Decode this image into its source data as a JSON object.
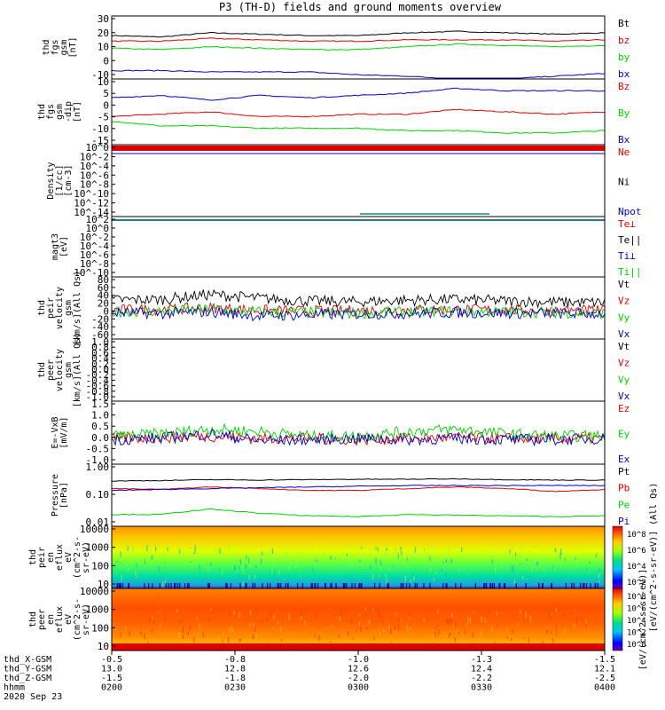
{
  "title": "P3 (TH-D) fields and ground moments overview",
  "colors": {
    "black": "#000000",
    "red": "#e00000",
    "green": "#00d000",
    "blue": "#0000c0"
  },
  "chart_data": [
    {
      "type": "line",
      "ylabel": [
        "thd",
        "fgs",
        "gsm",
        "[nT]"
      ],
      "yticks": [
        "30",
        "20",
        "10",
        "0",
        "-10"
      ],
      "ylim": [
        -15,
        30
      ],
      "series": [
        {
          "name": "Bt",
          "color": "black",
          "values": [
            16,
            15,
            18,
            17,
            16,
            16,
            18,
            19,
            18,
            17,
            18
          ]
        },
        {
          "name": "bz",
          "color": "red",
          "values": [
            12,
            12,
            14,
            13,
            12,
            12,
            13,
            13,
            13,
            12,
            13
          ]
        },
        {
          "name": "by",
          "color": "green",
          "values": [
            7,
            6,
            8,
            7,
            6,
            6,
            8,
            10,
            9,
            8,
            9
          ]
        },
        {
          "name": "bx",
          "color": "blue",
          "values": [
            -9,
            -9,
            -10,
            -10,
            -10,
            -12,
            -13,
            -15,
            -15,
            -13,
            -11
          ]
        }
      ]
    },
    {
      "type": "line",
      "ylabel": [
        "thd",
        "fgs",
        "gsm",
        "-dip",
        "[nT]"
      ],
      "yticks": [
        "10",
        "5",
        "0",
        "-5",
        "-10",
        "-15"
      ],
      "ylim": [
        -18,
        10
      ],
      "series": [
        {
          "name": "Bz",
          "color": "red",
          "values": [
            -6,
            -5,
            -4,
            -6,
            -6,
            -5,
            -5,
            -3,
            -4,
            -5,
            -4
          ]
        },
        {
          "name": "By",
          "color": "green",
          "values": [
            -8,
            -10,
            -10,
            -11,
            -11,
            -11,
            -12,
            -12,
            -13,
            -13,
            -12
          ]
        },
        {
          "name": "Bx",
          "color": "blue",
          "values": [
            2,
            3,
            1,
            3,
            2,
            3,
            4,
            6,
            5,
            5,
            5
          ]
        }
      ]
    },
    {
      "type": "line",
      "ylabel": [
        "Density",
        "[1/cc]",
        "[cm-3]"
      ],
      "yticks": [
        "10^0",
        "10^-2",
        "10^-4",
        "10^-6",
        "10^-8",
        "10^-10",
        "10^-12",
        "10^-14"
      ],
      "series": [
        {
          "name": "Ne",
          "color": "red"
        },
        {
          "name": "Ni",
          "color": "black"
        },
        {
          "name": "Npot",
          "color": "blue"
        }
      ]
    },
    {
      "type": "line",
      "ylabel": [
        "magt3",
        "[eV]"
      ],
      "yticks": [
        "10^2",
        "10^0",
        "10^-2",
        "10^-4",
        "10^-6",
        "10^-8",
        "10^-10"
      ],
      "series": [
        {
          "name": "Te⊥",
          "color": "red"
        },
        {
          "name": "Te||",
          "color": "black"
        },
        {
          "name": "Ti⊥",
          "color": "blue"
        },
        {
          "name": "Ti||",
          "color": "green"
        }
      ]
    },
    {
      "type": "line",
      "ylabel": [
        "thd",
        "peir",
        "velocity",
        "gsm",
        "[km/s](All Qs)"
      ],
      "yticks": [
        "80",
        "60",
        "40",
        "20",
        "0",
        "-20",
        "-40",
        "-60"
      ],
      "ylim": [
        -70,
        90
      ],
      "series": [
        {
          "name": "Vt",
          "color": "black",
          "values": [
            30,
            32,
            45,
            35,
            28,
            26,
            30,
            32,
            28,
            25,
            24
          ]
        },
        {
          "name": "Vz",
          "color": "red",
          "values": [
            5,
            6,
            10,
            4,
            2,
            3,
            5,
            6,
            4,
            3,
            3
          ]
        },
        {
          "name": "Vy",
          "color": "green",
          "values": [
            0,
            2,
            6,
            0,
            -2,
            -4,
            0,
            2,
            0,
            -2,
            -4
          ]
        },
        {
          "name": "Vx",
          "color": "blue",
          "values": [
            -2,
            -4,
            0,
            -10,
            -8,
            -5,
            -4,
            -2,
            -3,
            -4,
            -5
          ]
        }
      ]
    },
    {
      "type": "line",
      "ylabel": [
        "thd",
        "peer",
        "velocity",
        "gsm",
        "[km/s](All Qs)"
      ],
      "yticks": [
        "1.0",
        "0.8",
        "0.6",
        "0.4",
        "0.2",
        "0.0",
        "-0.2",
        "-0.4",
        "-0.6",
        "-0.8",
        "-1.0"
      ],
      "ylim": [
        -1.1,
        1.1
      ],
      "series": [
        {
          "name": "Vt",
          "color": "black"
        },
        {
          "name": "Vz",
          "color": "red"
        },
        {
          "name": "Vy",
          "color": "green"
        },
        {
          "name": "Vx",
          "color": "blue"
        }
      ]
    },
    {
      "type": "line",
      "ylabel": [
        "E=-VxB",
        "[mV/m]"
      ],
      "yticks": [
        "1.5",
        "1.0",
        "0.5",
        "0.0",
        "-0.5",
        "-1.0"
      ],
      "ylim": [
        -1.1,
        1.6
      ],
      "series": [
        {
          "name": "Ez",
          "color": "red",
          "values": [
            0.0,
            0.05,
            0.1,
            0.0,
            0.0,
            -0.05,
            0.0,
            0.05,
            0.0,
            0.0,
            0.0
          ]
        },
        {
          "name": "Ey",
          "color": "green",
          "values": [
            0.1,
            0.2,
            0.4,
            0.3,
            0.1,
            0.1,
            0.3,
            0.4,
            0.2,
            0.1,
            0.1
          ]
        },
        {
          "name": "Ex",
          "color": "blue",
          "values": [
            -0.05,
            0.0,
            0.2,
            -0.1,
            -0.05,
            0.0,
            -0.05,
            0.0,
            -0.05,
            -0.05,
            0.0
          ]
        }
      ]
    },
    {
      "type": "line",
      "ylabel": [
        "Pressure",
        "[nPa]"
      ],
      "yticks": [
        "1.00",
        "0.10",
        "0.01"
      ],
      "yscale": "log",
      "ylim": [
        0.008,
        1.0
      ],
      "series": [
        {
          "name": "Pt",
          "color": "black",
          "values": [
            0.27,
            0.28,
            0.3,
            0.29,
            0.3,
            0.31,
            0.31,
            0.32,
            0.3,
            0.29,
            0.29
          ]
        },
        {
          "name": "Pb",
          "color": "red",
          "values": [
            0.15,
            0.14,
            0.17,
            0.15,
            0.13,
            0.13,
            0.15,
            0.17,
            0.15,
            0.12,
            0.14
          ]
        },
        {
          "name": "Pe",
          "color": "green",
          "values": [
            0.02,
            0.02,
            0.03,
            0.022,
            0.018,
            0.017,
            0.02,
            0.019,
            0.018,
            0.017,
            0.018
          ]
        },
        {
          "name": "Pi",
          "color": "blue",
          "values": [
            0.13,
            0.14,
            0.15,
            0.16,
            0.17,
            0.18,
            0.19,
            0.19,
            0.19,
            0.19,
            0.19
          ]
        }
      ]
    },
    {
      "type": "heatmap",
      "ylabel": [
        "thd",
        "peir",
        "en",
        "eflux",
        "eV",
        "(cm^2-s-",
        "sr-eV)"
      ],
      "yticks": [
        "10000",
        "1000",
        "100",
        "10"
      ],
      "yscale": "log",
      "colorbar_ticks": [
        "10^8",
        "10^6",
        "10^4",
        "10^2"
      ],
      "colorbar_label": "[eV/(cm^2-s-sr-eV)] (All Qs)"
    },
    {
      "type": "heatmap",
      "ylabel": [
        "thd",
        "peer",
        "en",
        "eflux",
        "eV",
        "(cm^2-s-",
        "sr-eV)"
      ],
      "yticks": [
        "10000",
        "1000",
        "100",
        "10"
      ],
      "yscale": "log",
      "colorbar_ticks": [
        "10^8",
        "10^6",
        "10^4",
        "10^2",
        "10^0"
      ],
      "colorbar_label": "[eV/(cm^2-s-sr-eV)]"
    }
  ],
  "xaxis": {
    "rows": [
      {
        "label": "thd_X-GSM",
        "values": [
          "-0.5",
          "-0.8",
          "-1.0",
          "-1.3",
          "-1.5"
        ]
      },
      {
        "label": "thd_Y-GSM",
        "values": [
          "13.0",
          "12.8",
          "12.6",
          "12.4",
          "12.1"
        ]
      },
      {
        "label": "thd_Z-GSM",
        "values": [
          "-1.5",
          "-1.8",
          "-2.0",
          "-2.2",
          "-2.5"
        ]
      },
      {
        "label": "hhmm",
        "values": [
          "0200",
          "0230",
          "0300",
          "0330",
          "0400"
        ]
      }
    ],
    "date": "2020 Sep 23"
  }
}
